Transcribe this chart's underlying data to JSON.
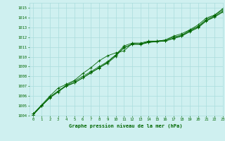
{
  "title": "Graphe pression niveau de la mer (hPa)",
  "background_color": "#cff0f0",
  "grid_color": "#aadddd",
  "text_color": "#006600",
  "line_color": "#006600",
  "xlim": [
    -0.5,
    23
  ],
  "ylim": [
    1004,
    1015.5
  ],
  "xticks": [
    0,
    1,
    2,
    3,
    4,
    5,
    6,
    7,
    8,
    9,
    10,
    11,
    12,
    13,
    14,
    15,
    16,
    17,
    18,
    19,
    20,
    21,
    22,
    23
  ],
  "yticks": [
    1004,
    1005,
    1006,
    1007,
    1008,
    1009,
    1010,
    1011,
    1012,
    1013,
    1014,
    1015
  ],
  "series": [
    [
      1004.2,
      1005.0,
      1005.9,
      1006.5,
      1007.1,
      1007.5,
      1008.0,
      1008.5,
      1009.0,
      1009.5,
      1010.2,
      1011.1,
      1011.4,
      1011.4,
      1011.6,
      1011.6,
      1011.7,
      1012.0,
      1012.2,
      1012.7,
      1013.1,
      1013.8,
      1014.2,
      1014.8
    ],
    [
      1004.2,
      1005.1,
      1006.0,
      1006.8,
      1007.2,
      1007.6,
      1008.3,
      1008.9,
      1009.6,
      1010.1,
      1010.4,
      1010.6,
      1011.35,
      1011.3,
      1011.55,
      1011.6,
      1011.7,
      1012.1,
      1012.35,
      1012.75,
      1013.25,
      1013.95,
      1014.25,
      1014.9
    ],
    [
      1004.1,
      1005.0,
      1005.8,
      1006.4,
      1007.05,
      1007.35,
      1007.85,
      1008.35,
      1008.9,
      1009.35,
      1010.05,
      1010.95,
      1011.25,
      1011.3,
      1011.5,
      1011.55,
      1011.6,
      1011.85,
      1012.1,
      1012.55,
      1012.95,
      1013.65,
      1014.05,
      1014.55
    ],
    [
      1004.1,
      1005.0,
      1005.85,
      1006.5,
      1007.0,
      1007.35,
      1007.85,
      1008.4,
      1008.85,
      1009.45,
      1010.15,
      1010.9,
      1011.3,
      1011.25,
      1011.45,
      1011.55,
      1011.6,
      1011.9,
      1012.15,
      1012.6,
      1013.05,
      1013.7,
      1014.1,
      1014.65
    ]
  ]
}
